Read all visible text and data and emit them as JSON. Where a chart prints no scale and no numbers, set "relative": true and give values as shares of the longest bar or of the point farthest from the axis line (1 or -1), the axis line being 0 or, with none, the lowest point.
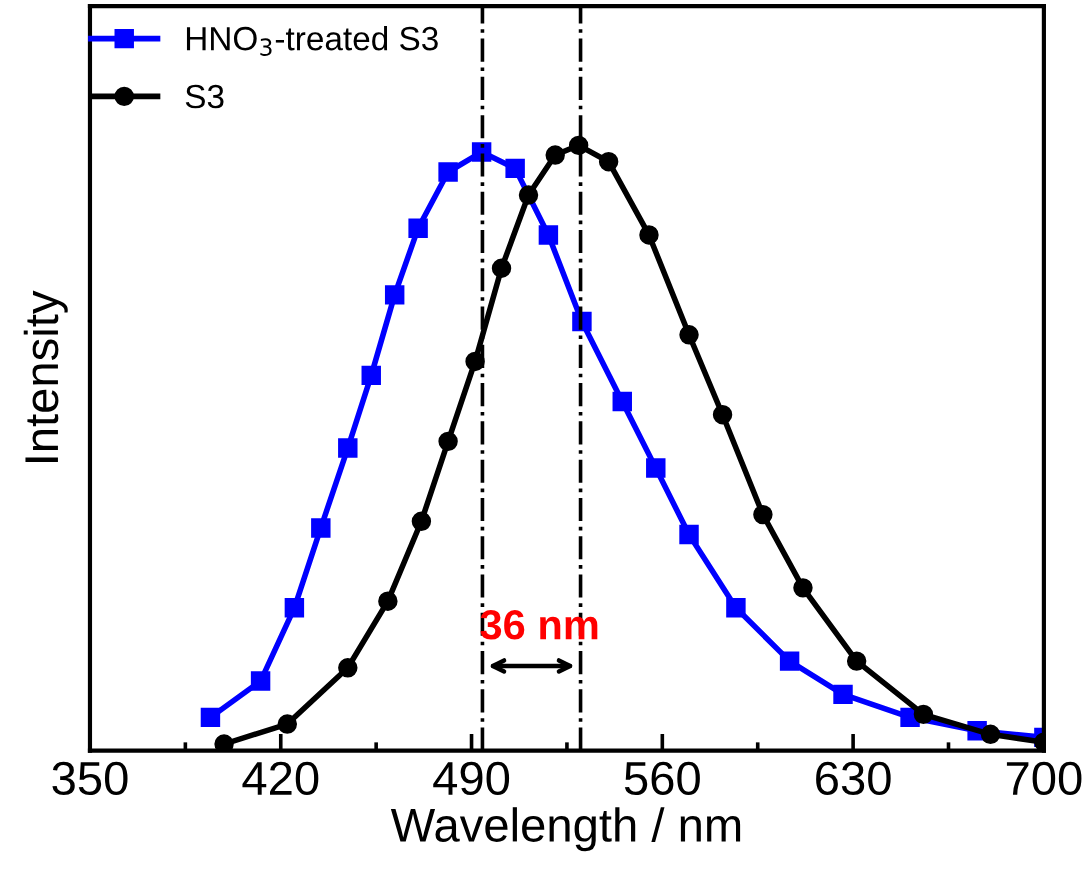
{
  "chart_data": {
    "type": "line",
    "xlabel": "Wavelength / nm",
    "ylabel": "Intensity",
    "relative": true,
    "xlim": [
      350,
      700
    ],
    "xticks": [
      350,
      420,
      490,
      560,
      630,
      700
    ],
    "tick_labels": "x",
    "grid": false,
    "legend": "top left",
    "line_style": "solid",
    "series": [
      {
        "name": "HNO$_{3}$-treated S3",
        "color": "#0000ff",
        "marker": "square",
        "x": [
          394.2,
          412.6,
          425,
          434.7,
          444.6,
          453.2,
          461.8,
          470.4,
          481.4,
          493.7,
          506,
          518.2,
          530.5,
          545.3,
          557.6,
          569.8,
          587,
          606.7,
          626.3,
          650.9,
          675.5,
          700
        ],
        "values": [
          0.055,
          0.115,
          0.236,
          0.368,
          0.5,
          0.62,
          0.753,
          0.863,
          0.956,
          0.989,
          0.962,
          0.852,
          0.709,
          0.577,
          0.467,
          0.357,
          0.236,
          0.148,
          0.093,
          0.055,
          0.033,
          0.022
        ]
      },
      {
        "name": "S3",
        "color": "#000000",
        "marker": "circle",
        "x": [
          399.2,
          422.4,
          444.6,
          459.3,
          471.6,
          481.4,
          491.3,
          501,
          510.9,
          520.7,
          529.3,
          540.3,
          555.1,
          569.8,
          582.1,
          596.9,
          611.6,
          631.3,
          655.8,
          680.4,
          700
        ],
        "values": [
          0.011,
          0.044,
          0.137,
          0.247,
          0.379,
          0.511,
          0.643,
          0.797,
          0.918,
          0.984,
          1,
          0.973,
          0.852,
          0.687,
          0.555,
          0.39,
          0.269,
          0.148,
          0.06,
          0.027,
          0.014
        ]
      }
    ],
    "ref_lines": [
      {
        "axis": "x",
        "value": 494,
        "color": "#000000",
        "line_style": "dashdot"
      },
      {
        "axis": "x",
        "value": 530,
        "color": "#000000",
        "line_style": "dashdot"
      }
    ],
    "annotations": [
      "36 nm"
    ]
  }
}
